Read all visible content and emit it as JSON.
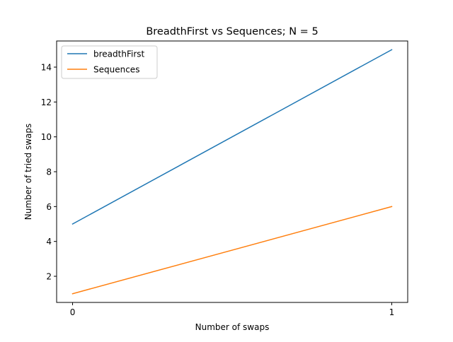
{
  "chart_data": {
    "type": "line",
    "title": "BreadthFirst vs Sequences; N = 5",
    "xlabel": "Number of swaps",
    "ylabel": "Number of tried swaps",
    "x": [
      0,
      1
    ],
    "xticks": [
      "0",
      "1"
    ],
    "yticks": [
      "2",
      "4",
      "6",
      "8",
      "10",
      "12",
      "14"
    ],
    "xlim": [
      -0.05,
      1.05
    ],
    "ylim": [
      0.5,
      15.5
    ],
    "grid": false,
    "legend_position": "top-left",
    "series": [
      {
        "name": "breadthFirst",
        "values": [
          5,
          15
        ],
        "color": "#1f77b4"
      },
      {
        "name": "Sequences",
        "values": [
          1,
          6
        ],
        "color": "#ff7f0e"
      }
    ]
  }
}
